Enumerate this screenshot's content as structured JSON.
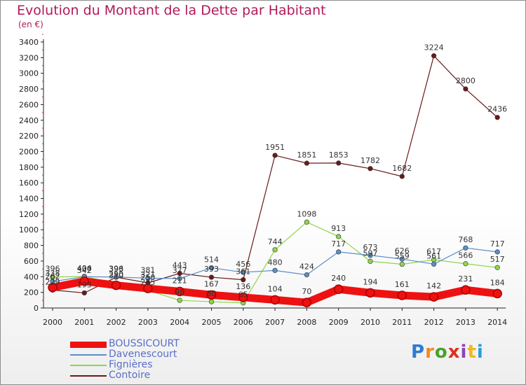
{
  "header": {
    "title": "Evolution du Montant de la Dette par Habitant",
    "unit": "(en €)"
  },
  "logo": {
    "text": "Proxiti"
  },
  "chart_data": {
    "type": "line",
    "x": [
      "2000",
      "2001",
      "2002",
      "2003",
      "2004",
      "2005",
      "2006",
      "2007",
      "2008",
      "2009",
      "2010",
      "2011",
      "2012",
      "2013",
      "2014"
    ],
    "ylim": [
      0,
      3400
    ],
    "yticks": [
      0,
      200,
      400,
      600,
      800,
      1000,
      1200,
      1400,
      1600,
      1800,
      2000,
      2200,
      2400,
      2600,
      2800,
      3000,
      3200,
      3400
    ],
    "grid": false,
    "legend": "bottom-left",
    "series": [
      {
        "name": "BOUSSICOURT",
        "color": "#ee1111",
        "values": [
          262,
          342,
          290,
          250,
          211,
          167,
          136,
          104,
          70,
          240,
          194,
          161,
          142,
          231,
          184
        ]
      },
      {
        "name": "Davenescourt",
        "color": "#5a8fc8",
        "values": [
          338,
          400,
          396,
          381,
          377,
          514,
          456,
          480,
          424,
          717,
          673,
          626,
          561,
          768,
          717
        ]
      },
      {
        "name": "Fignières",
        "color": "#8fd64a",
        "values": [
          396,
          404,
          310,
          225,
          98,
          80,
          65,
          744,
          1098,
          913,
          597,
          559,
          617,
          566,
          517
        ]
      },
      {
        "name": "Contoire",
        "color": "#6a1a1a",
        "values": [
          229,
          193,
          393,
          321,
          443,
          393,
          361,
          1951,
          1851,
          1853,
          1782,
          1682,
          3224,
          2800,
          2436
        ]
      }
    ]
  }
}
